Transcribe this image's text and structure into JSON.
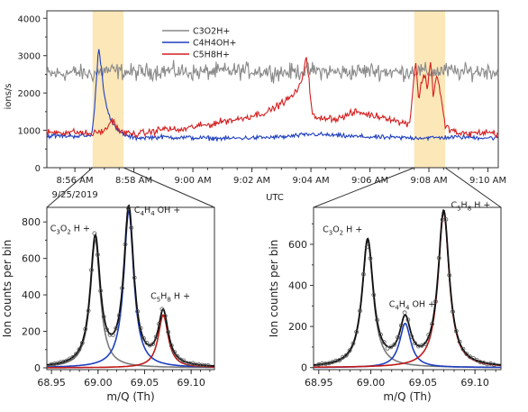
{
  "chart_data": [
    {
      "type": "line",
      "ylabel": "ions/s",
      "xlabel": "UTC",
      "date_label": "9/25/2019",
      "ylim": [
        0,
        4200
      ],
      "yticks": [
        0,
        1000,
        2000,
        3000,
        4000
      ],
      "xlim_minutes": [
        0,
        15.3
      ],
      "xticks": [
        {
          "label": "8:56 AM",
          "minute": 0.95
        },
        {
          "label": "8:58 AM",
          "minute": 2.95
        },
        {
          "label": "9:00 AM",
          "minute": 4.95
        },
        {
          "label": "9:02 AM",
          "minute": 6.95
        },
        {
          "label": "9:04 AM",
          "minute": 8.95
        },
        {
          "label": "9:06 AM",
          "minute": 10.95
        },
        {
          "label": "9:08 AM",
          "minute": 12.95
        },
        {
          "label": "9:10 AM",
          "minute": 14.95
        }
      ],
      "highlight_regions": [
        [
          1.55,
          2.6
        ],
        [
          12.45,
          13.5
        ]
      ],
      "legend_position": "top-center",
      "series": [
        {
          "name": "C3O2H+",
          "color": "#8a8a8a",
          "minutes": [
            0,
            1,
            1.5,
            2,
            3,
            4,
            5,
            6,
            7,
            8,
            9,
            10,
            11,
            12,
            12.5,
            13,
            13.5,
            14,
            15,
            15.3
          ],
          "values": [
            2500,
            2550,
            2500,
            2600,
            2550,
            2600,
            2550,
            2580,
            2600,
            2550,
            2600,
            2550,
            2600,
            2550,
            2600,
            2550,
            2600,
            2550,
            2600,
            2550
          ]
        },
        {
          "name": "C4H4OH+",
          "color": "#1f3fbf",
          "minutes": [
            0,
            1,
            1.5,
            1.6,
            1.75,
            1.85,
            1.95,
            2.05,
            2.2,
            2.4,
            2.7,
            3,
            4,
            5,
            6,
            7,
            8,
            9,
            10,
            11,
            12,
            13,
            14,
            15,
            15.3
          ],
          "values": [
            850,
            850,
            850,
            1400,
            3200,
            2700,
            1900,
            1600,
            1200,
            1000,
            850,
            800,
            820,
            800,
            780,
            800,
            820,
            900,
            850,
            820,
            800,
            800,
            820,
            800,
            800
          ]
        },
        {
          "name": "C5H8H+",
          "color": "#d42020",
          "minutes": [
            0,
            1,
            1.5,
            2,
            2.2,
            2.5,
            3,
            3.5,
            4,
            4.5,
            5,
            5.5,
            6,
            6.5,
            7,
            7.5,
            8,
            8.3,
            8.6,
            8.8,
            9,
            9.2,
            9.5,
            9.8,
            10,
            10.5,
            11,
            11.5,
            12,
            12.3,
            12.5,
            12.6,
            12.7,
            12.8,
            12.9,
            13,
            13.1,
            13.2,
            13.3,
            13.5,
            14,
            15,
            15.3
          ],
          "values": [
            950,
            950,
            900,
            1000,
            1300,
            950,
            900,
            950,
            1050,
            1000,
            1100,
            1150,
            1250,
            1300,
            1400,
            1500,
            1750,
            1900,
            2200,
            3000,
            1400,
            1300,
            1350,
            1300,
            1350,
            1500,
            1400,
            1350,
            1200,
            1200,
            2900,
            1800,
            2300,
            2500,
            2100,
            2900,
            1900,
            2500,
            2200,
            1100,
            900,
            950,
            900
          ]
        }
      ]
    },
    {
      "type": "line",
      "xlabel": "m/Q (Th)",
      "ylabel": "Ion counts per bin",
      "xlim": [
        68.945,
        69.125
      ],
      "ylim": [
        -10,
        880
      ],
      "xticks": [
        68.95,
        69.0,
        69.05,
        69.1
      ],
      "yticks": [
        0,
        200,
        400,
        600,
        800
      ],
      "peaks": [
        {
          "label_main": "C",
          "label_sub1": "3",
          "label_mid": "O",
          "label_sub2": "2",
          "label_end": "H +",
          "center": 68.997,
          "height": 700,
          "color": "#7a7a7a"
        },
        {
          "label_main": "C",
          "label_sub1": "4",
          "label_mid": "H",
          "label_sub2": "4",
          "label_end": "OH +",
          "center": 69.033,
          "height": 860,
          "color": "#1f3fbf"
        },
        {
          "label_main": "C",
          "label_sub1": "5",
          "label_mid": "H",
          "label_sub2": "8",
          "label_end": "H +",
          "center": 69.07,
          "height": 290,
          "color": "#c01818"
        }
      ]
    },
    {
      "type": "line",
      "xlabel": "m/Q (Th)",
      "ylabel": "Ion counts per bin",
      "xlim": [
        68.945,
        69.125
      ],
      "ylim": [
        -10,
        780
      ],
      "xticks": [
        68.95,
        69.0,
        69.05,
        69.1
      ],
      "yticks": [
        0,
        200,
        400,
        600
      ],
      "peaks": [
        {
          "label_main": "C",
          "label_sub1": "3",
          "label_mid": "O",
          "label_sub2": "2",
          "label_end": "H +",
          "center": 68.997,
          "height": 615,
          "color": "#7a7a7a"
        },
        {
          "label_main": "C",
          "label_sub1": "4",
          "label_mid": "H",
          "label_sub2": "4",
          "label_end": "OH +",
          "center": 69.033,
          "height": 215,
          "color": "#1f3fbf"
        },
        {
          "label_main": "C",
          "label_sub1": "5",
          "label_mid": "H",
          "label_sub2": "8",
          "label_end": "H +",
          "center": 69.07,
          "height": 755,
          "color": "#c01818"
        }
      ]
    }
  ]
}
